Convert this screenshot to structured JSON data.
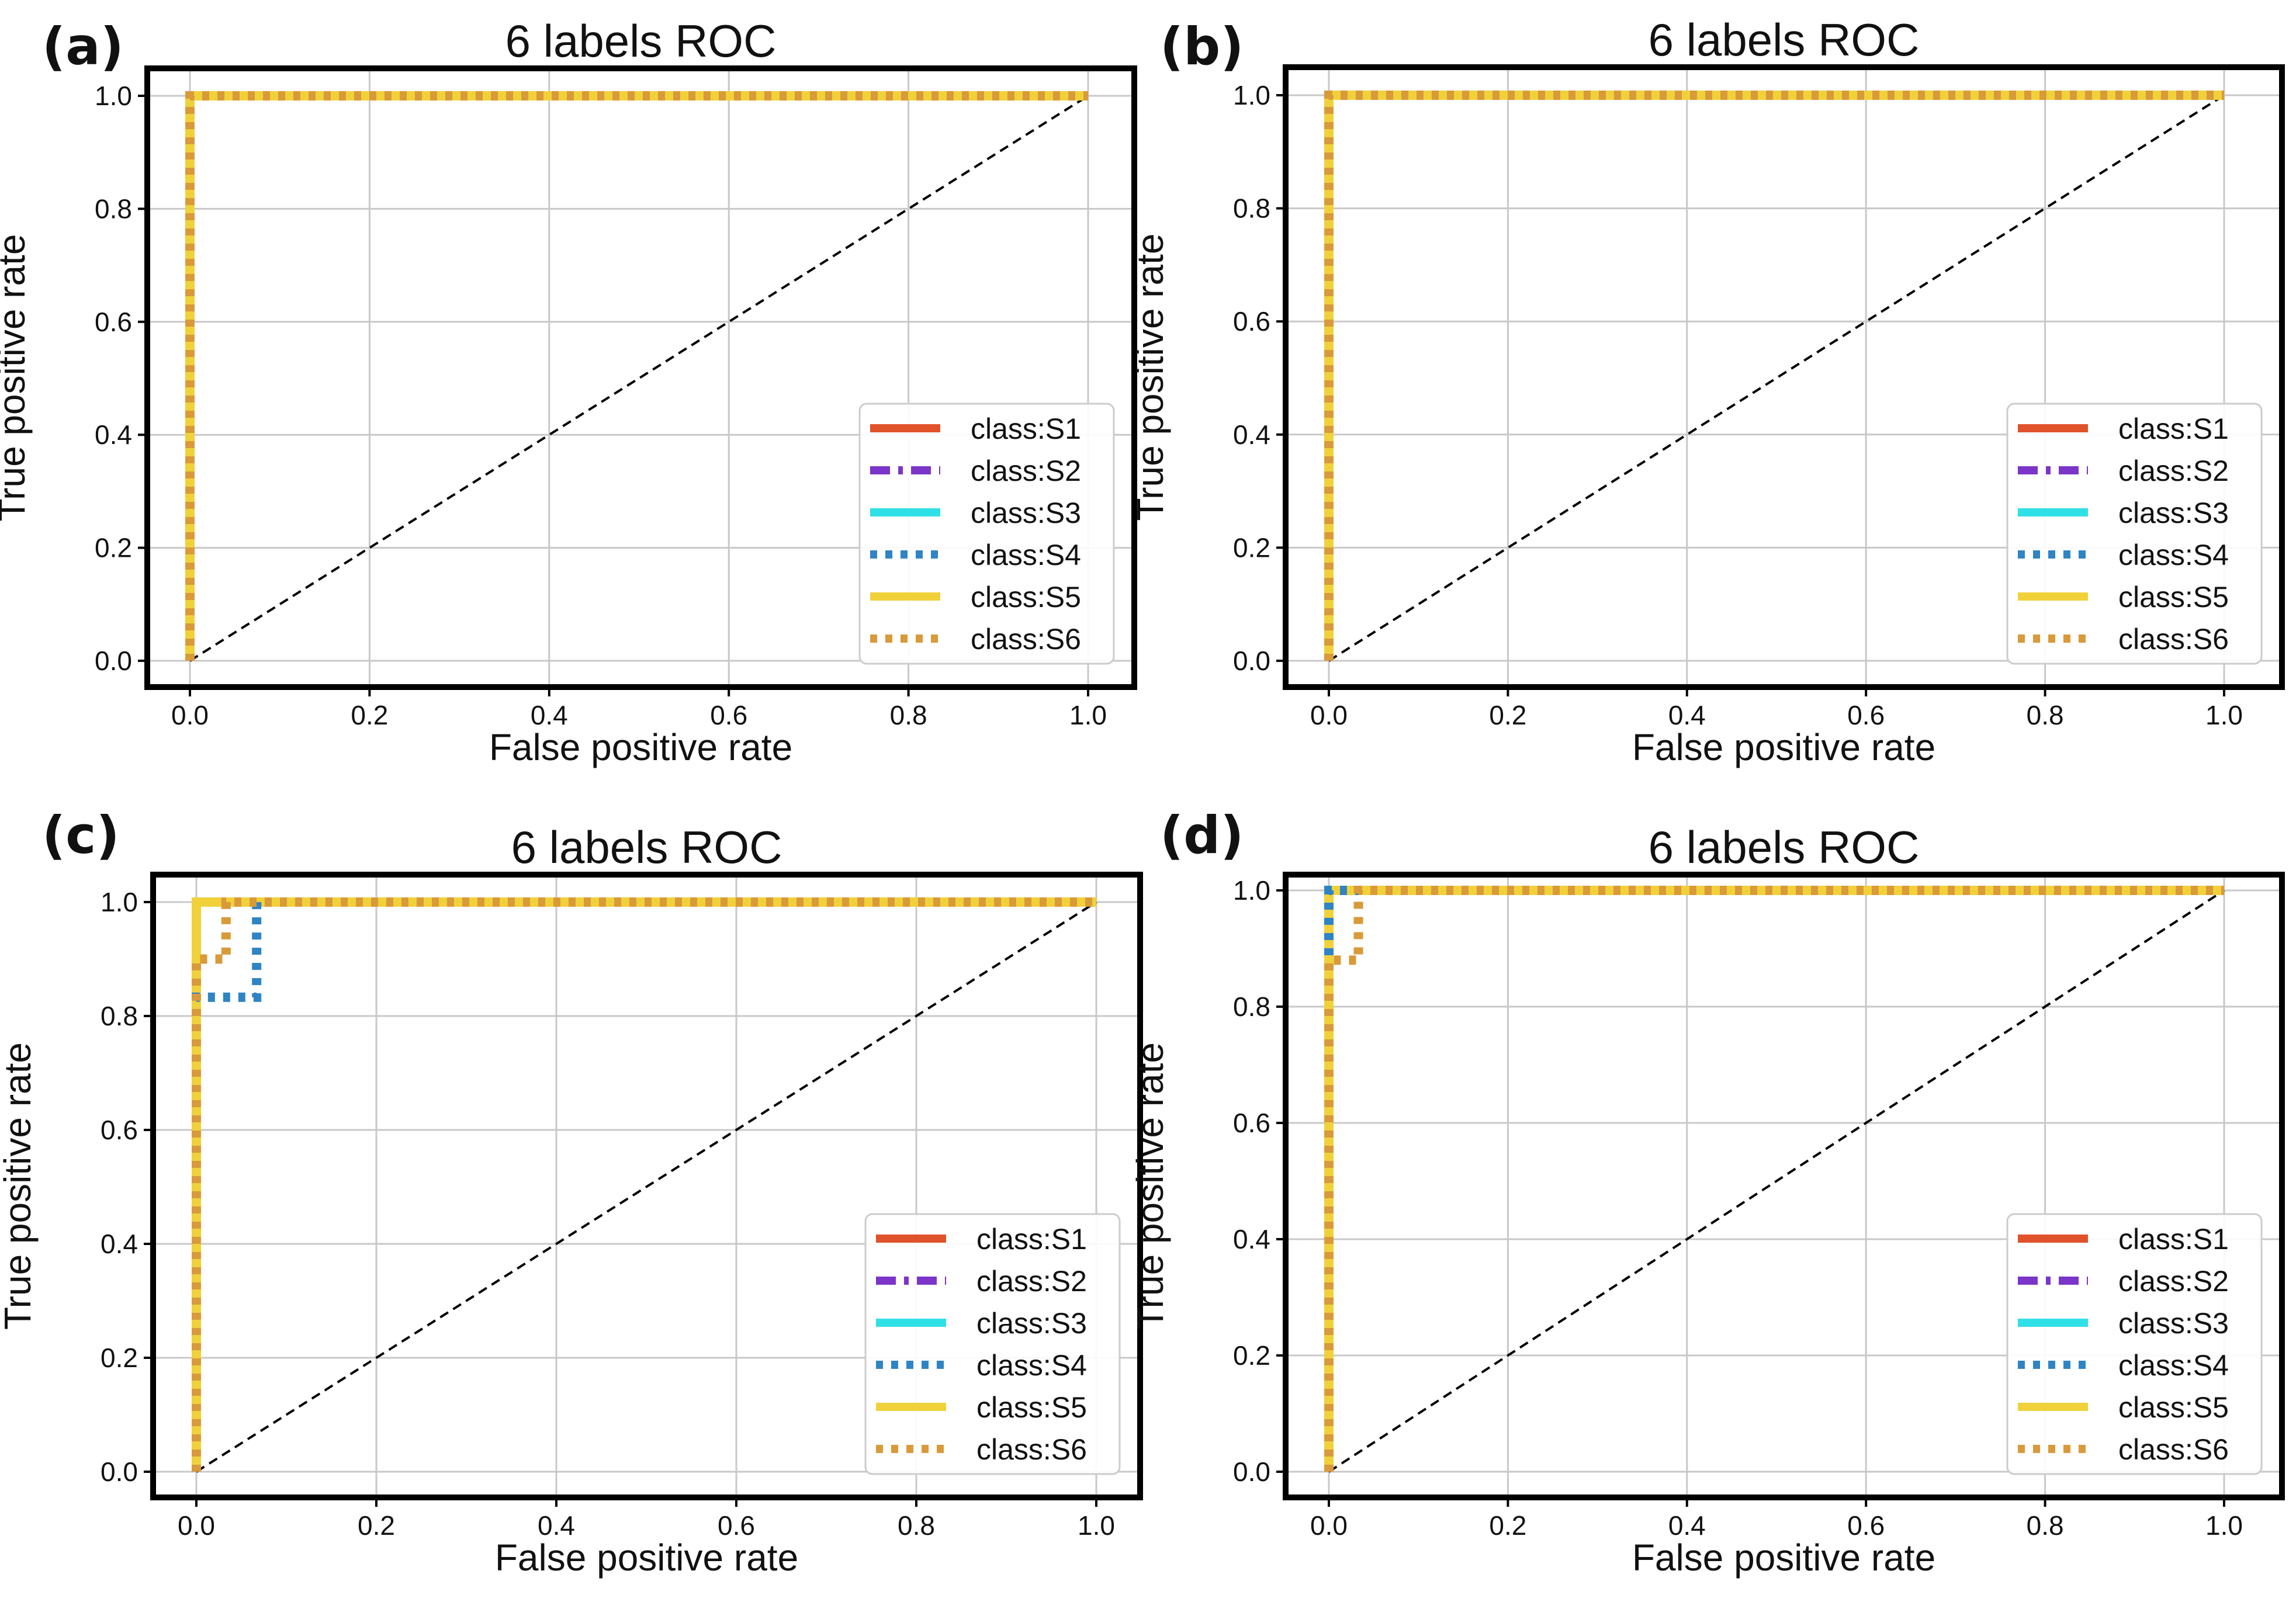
{
  "figure": {
    "caption_letters": [
      "(a)",
      "(b)",
      "(c)",
      "(d)"
    ]
  },
  "series_styles": [
    {
      "name": "class:S1",
      "color": "#e0522a",
      "dash": "solid"
    },
    {
      "name": "class:S2",
      "color": "#7b35c8",
      "dash": "dashdot"
    },
    {
      "name": "class:S3",
      "color": "#2fe0e6",
      "dash": "solid"
    },
    {
      "name": "class:S4",
      "color": "#2f84c4",
      "dash": "dotted"
    },
    {
      "name": "class:S5",
      "color": "#f0d13a",
      "dash": "solid"
    },
    {
      "name": "class:S6",
      "color": "#d99a3a",
      "dash": "dotted"
    }
  ],
  "chart_data": [
    {
      "panel": "(a)",
      "type": "line",
      "title": "6 labels ROC",
      "xlabel": "False positive rate",
      "ylabel": "True positive rate",
      "xlim": [
        0,
        1
      ],
      "ylim": [
        0,
        1
      ],
      "xticks": [
        "0.0",
        "0.2",
        "0.4",
        "0.6",
        "0.8",
        "1.0"
      ],
      "yticks": [
        "0.0",
        "0.2",
        "0.4",
        "0.6",
        "0.8",
        "1.0"
      ],
      "grid": true,
      "legend_position": "lower-right",
      "reference_line": {
        "x": [
          0,
          1
        ],
        "y": [
          0,
          1
        ],
        "style": "dashed",
        "color": "#000000"
      },
      "series": [
        {
          "name": "class:S1",
          "x": [
            0,
            0,
            1
          ],
          "y": [
            0,
            1,
            1
          ]
        },
        {
          "name": "class:S2",
          "x": [
            0,
            0,
            1
          ],
          "y": [
            0,
            1,
            1
          ]
        },
        {
          "name": "class:S3",
          "x": [
            0,
            0,
            1
          ],
          "y": [
            0,
            1,
            1
          ]
        },
        {
          "name": "class:S4",
          "x": [
            0,
            0,
            1
          ],
          "y": [
            0,
            1,
            1
          ]
        },
        {
          "name": "class:S5",
          "x": [
            0,
            0,
            1
          ],
          "y": [
            0,
            1,
            1
          ]
        },
        {
          "name": "class:S6",
          "x": [
            0,
            0,
            1
          ],
          "y": [
            0,
            1,
            1
          ]
        }
      ]
    },
    {
      "panel": "(b)",
      "type": "line",
      "title": "6 labels ROC",
      "xlabel": "False positive rate",
      "ylabel": "True positive rate",
      "xlim": [
        0,
        1
      ],
      "ylim": [
        0,
        1
      ],
      "xticks": [
        "0.0",
        "0.2",
        "0.4",
        "0.6",
        "0.8",
        "1.0"
      ],
      "yticks": [
        "0.0",
        "0.2",
        "0.4",
        "0.6",
        "0.8",
        "1.0"
      ],
      "grid": true,
      "legend_position": "lower-right",
      "reference_line": {
        "x": [
          0,
          1
        ],
        "y": [
          0,
          1
        ],
        "style": "dashed",
        "color": "#000000"
      },
      "series": [
        {
          "name": "class:S1",
          "x": [
            0,
            0,
            1
          ],
          "y": [
            0,
            1,
            1
          ]
        },
        {
          "name": "class:S2",
          "x": [
            0,
            0,
            1
          ],
          "y": [
            0,
            1,
            1
          ]
        },
        {
          "name": "class:S3",
          "x": [
            0,
            0,
            1
          ],
          "y": [
            0,
            1,
            1
          ]
        },
        {
          "name": "class:S4",
          "x": [
            0,
            0,
            1
          ],
          "y": [
            0,
            1,
            1
          ]
        },
        {
          "name": "class:S5",
          "x": [
            0,
            0,
            1
          ],
          "y": [
            0,
            1,
            1
          ]
        },
        {
          "name": "class:S6",
          "x": [
            0,
            0,
            1
          ],
          "y": [
            0,
            1,
            1
          ]
        }
      ]
    },
    {
      "panel": "(c)",
      "type": "line",
      "title": "6 labels ROC",
      "xlabel": "False positive rate",
      "ylabel": "True positive rate",
      "xlim": [
        0,
        1
      ],
      "ylim": [
        0,
        1
      ],
      "xticks": [
        "0.0",
        "0.2",
        "0.4",
        "0.6",
        "0.8",
        "1.0"
      ],
      "yticks": [
        "0.0",
        "0.2",
        "0.4",
        "0.6",
        "0.8",
        "1.0"
      ],
      "grid": true,
      "legend_position": "lower-right",
      "reference_line": {
        "x": [
          0,
          1
        ],
        "y": [
          0,
          1
        ],
        "style": "dashed",
        "color": "#000000"
      },
      "series": [
        {
          "name": "class:S1",
          "x": [
            0,
            0,
            1
          ],
          "y": [
            0,
            1,
            1
          ]
        },
        {
          "name": "class:S2",
          "x": [
            0,
            0,
            1
          ],
          "y": [
            0,
            1,
            1
          ]
        },
        {
          "name": "class:S3",
          "x": [
            0,
            0,
            1
          ],
          "y": [
            0,
            1,
            1
          ]
        },
        {
          "name": "class:S4",
          "x": [
            0,
            0,
            0.067,
            0.067,
            1
          ],
          "y": [
            0,
            0.833,
            0.833,
            1,
            1
          ]
        },
        {
          "name": "class:S5",
          "x": [
            0,
            0,
            1
          ],
          "y": [
            0,
            1,
            1
          ]
        },
        {
          "name": "class:S6",
          "x": [
            0,
            0,
            0.033,
            0.033,
            1
          ],
          "y": [
            0,
            0.9,
            0.9,
            1,
            1
          ]
        }
      ]
    },
    {
      "panel": "(d)",
      "type": "line",
      "title": "6 labels ROC",
      "xlabel": "False positive rate",
      "ylabel": "True positive rate",
      "xlim": [
        0,
        1
      ],
      "ylim": [
        0,
        1
      ],
      "xticks": [
        "0.0",
        "0.2",
        "0.4",
        "0.6",
        "0.8",
        "1.0"
      ],
      "yticks": [
        "0.0",
        "0.2",
        "0.4",
        "0.6",
        "0.8",
        "1.0"
      ],
      "grid": true,
      "legend_position": "lower-right",
      "reference_line": {
        "x": [
          0,
          1
        ],
        "y": [
          0,
          1
        ],
        "style": "dashed",
        "color": "#000000"
      },
      "series": [
        {
          "name": "class:S1",
          "x": [
            0,
            0,
            1
          ],
          "y": [
            0,
            1,
            1
          ]
        },
        {
          "name": "class:S2",
          "x": [
            0,
            0,
            1
          ],
          "y": [
            0,
            1,
            1
          ]
        },
        {
          "name": "class:S3",
          "x": [
            0,
            0,
            1
          ],
          "y": [
            0,
            1,
            1
          ]
        },
        {
          "name": "class:S4",
          "x": [
            0,
            0,
            1
          ],
          "y": [
            0,
            1,
            1
          ]
        },
        {
          "name": "class:S5",
          "x": [
            0,
            0,
            1
          ],
          "y": [
            0,
            1,
            1
          ]
        },
        {
          "name": "class:S6",
          "x": [
            0,
            0,
            0.033,
            0.033,
            1
          ],
          "y": [
            0,
            0.88,
            0.88,
            1,
            1
          ]
        }
      ]
    }
  ]
}
